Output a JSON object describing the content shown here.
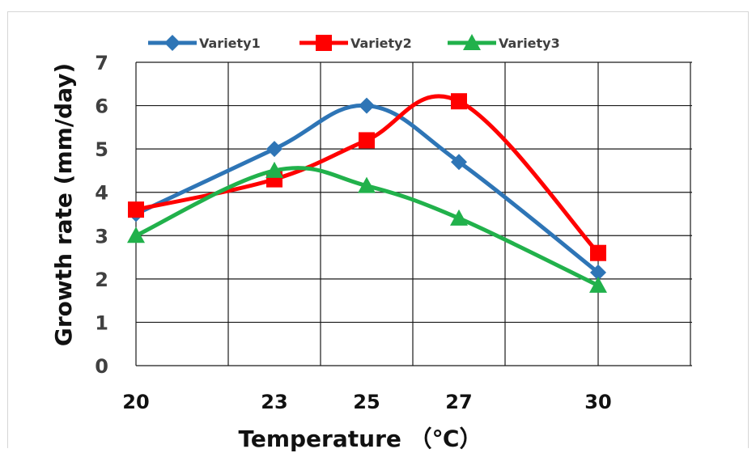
{
  "chart_data": {
    "type": "line",
    "x": [
      20,
      23,
      25,
      27,
      30
    ],
    "categories": [
      "20",
      "23",
      "25",
      "27",
      "30"
    ],
    "series": [
      {
        "name": "Variety1",
        "values": [
          3.5,
          5.0,
          6.0,
          4.7,
          2.15
        ],
        "color": "#2e75b6",
        "marker": "diamond"
      },
      {
        "name": "Variety2",
        "values": [
          3.6,
          4.3,
          5.2,
          6.1,
          2.6
        ],
        "color": "#ff0000",
        "marker": "square"
      },
      {
        "name": "Variety3",
        "values": [
          3.0,
          4.5,
          4.15,
          3.4,
          1.85
        ],
        "color": "#21b14b",
        "marker": "triangle"
      }
    ],
    "xlabel": "Temperature （℃）",
    "ylabel": "Growth rate (mm/day)",
    "ylim": [
      0,
      7
    ],
    "yticks": [
      "0",
      "1",
      "2",
      "3",
      "4",
      "5",
      "6",
      "7"
    ],
    "grid": true,
    "legend": "top"
  }
}
